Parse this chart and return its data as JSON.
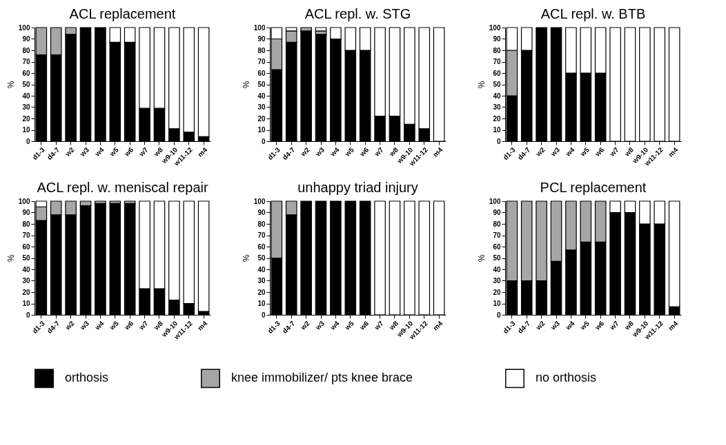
{
  "chart_data": [
    {
      "type": "bar",
      "title": "ACL replacement",
      "ylabel": "%",
      "stacked": true,
      "ylim": [
        0,
        100
      ],
      "yticks": [
        0,
        10,
        20,
        30,
        40,
        50,
        60,
        70,
        80,
        90,
        100
      ],
      "categories": [
        "d1-3",
        "d4-7",
        "w2",
        "w3",
        "w4",
        "w5",
        "w6",
        "w7",
        "w8",
        "w9-10",
        "w11-12",
        "m4"
      ],
      "series": [
        {
          "color": "#000000",
          "values": [
            76,
            76,
            94,
            100,
            100,
            87,
            87,
            29,
            29,
            11,
            8,
            4
          ]
        },
        {
          "color": "#a6a6a6",
          "values": [
            24,
            24,
            6,
            0,
            0,
            0,
            0,
            0,
            0,
            0,
            0,
            0
          ]
        },
        {
          "color": "#ffffff",
          "values": [
            0,
            0,
            0,
            0,
            0,
            13,
            13,
            71,
            71,
            89,
            92,
            96
          ]
        }
      ]
    },
    {
      "type": "bar",
      "title": "ACL repl. w. STG",
      "ylabel": "%",
      "stacked": true,
      "ylim": [
        0,
        100
      ],
      "yticks": [
        0,
        10,
        20,
        30,
        40,
        50,
        60,
        70,
        80,
        90,
        100
      ],
      "categories": [
        "d1-3",
        "d4-7",
        "w2",
        "w3",
        "w4",
        "w5",
        "w6",
        "w7",
        "w8",
        "w9-10",
        "w11-12",
        "m4"
      ],
      "series": [
        {
          "color": "#000000",
          "values": [
            63,
            87,
            97,
            94,
            90,
            80,
            80,
            22,
            22,
            15,
            11,
            0
          ]
        },
        {
          "color": "#a6a6a6",
          "values": [
            27,
            10,
            3,
            3,
            0,
            0,
            0,
            0,
            0,
            0,
            0,
            0
          ]
        },
        {
          "color": "#ffffff",
          "values": [
            10,
            3,
            0,
            3,
            10,
            20,
            20,
            78,
            78,
            85,
            89,
            100
          ]
        }
      ]
    },
    {
      "type": "bar",
      "title": "ACL repl. w. BTB",
      "ylabel": "%",
      "stacked": true,
      "ylim": [
        0,
        100
      ],
      "yticks": [
        0,
        10,
        20,
        30,
        40,
        50,
        60,
        70,
        80,
        90,
        100
      ],
      "categories": [
        "d1-3",
        "d4-7",
        "w2",
        "w3",
        "w4",
        "w5",
        "w6",
        "w7",
        "w8",
        "w9-10",
        "w11-12",
        "m4"
      ],
      "series": [
        {
          "color": "#000000",
          "values": [
            40,
            80,
            100,
            100,
            60,
            60,
            60,
            0,
            0,
            0,
            0,
            0
          ]
        },
        {
          "color": "#a6a6a6",
          "values": [
            40,
            0,
            0,
            0,
            0,
            0,
            0,
            0,
            0,
            0,
            0,
            0
          ]
        },
        {
          "color": "#ffffff",
          "values": [
            20,
            20,
            0,
            0,
            40,
            40,
            40,
            100,
            100,
            100,
            100,
            100
          ]
        }
      ]
    },
    {
      "type": "bar",
      "title": "ACL repl. w. meniscal repair",
      "ylabel": "%",
      "stacked": true,
      "ylim": [
        0,
        100
      ],
      "yticks": [
        0,
        10,
        20,
        30,
        40,
        50,
        60,
        70,
        80,
        90,
        100
      ],
      "categories": [
        "d1-3",
        "d4-7",
        "w2",
        "w3",
        "w4",
        "w5",
        "w6",
        "w7",
        "w8",
        "w9-10",
        "w11-12",
        "m4"
      ],
      "series": [
        {
          "color": "#000000",
          "values": [
            83,
            88,
            88,
            96,
            98,
            98,
            98,
            23,
            23,
            13,
            10,
            3
          ]
        },
        {
          "color": "#a6a6a6",
          "values": [
            12,
            12,
            12,
            4,
            2,
            2,
            2,
            0,
            0,
            0,
            0,
            0
          ]
        },
        {
          "color": "#ffffff",
          "values": [
            5,
            0,
            0,
            0,
            0,
            0,
            0,
            77,
            77,
            87,
            90,
            97
          ]
        }
      ]
    },
    {
      "type": "bar",
      "title": "unhappy triad injury",
      "ylabel": "%",
      "stacked": true,
      "ylim": [
        0,
        100
      ],
      "yticks": [
        0,
        10,
        20,
        30,
        40,
        50,
        60,
        70,
        80,
        90,
        100
      ],
      "categories": [
        "d1-3",
        "d4-7",
        "w2",
        "w3",
        "w4",
        "w5",
        "w6",
        "w7",
        "w8",
        "w9-10",
        "w11-12",
        "m4"
      ],
      "series": [
        {
          "color": "#000000",
          "values": [
            50,
            88,
            100,
            100,
            100,
            100,
            100,
            0,
            0,
            0,
            0,
            0
          ]
        },
        {
          "color": "#a6a6a6",
          "values": [
            50,
            12,
            0,
            0,
            0,
            0,
            0,
            0,
            0,
            0,
            0,
            0
          ]
        },
        {
          "color": "#ffffff",
          "values": [
            0,
            0,
            0,
            0,
            0,
            0,
            0,
            100,
            100,
            100,
            100,
            100
          ]
        }
      ]
    },
    {
      "type": "bar",
      "title": "PCL replacement",
      "ylabel": "%",
      "stacked": true,
      "legend": "bottom",
      "ylim": [
        0,
        100
      ],
      "yticks": [
        0,
        10,
        20,
        30,
        40,
        50,
        60,
        70,
        80,
        90,
        100
      ],
      "categories": [
        "d1-3",
        "d4-7",
        "w2",
        "w3",
        "w4",
        "w5",
        "w6",
        "w7",
        "w8",
        "w9-10",
        "w11-12",
        "m4"
      ],
      "series": [
        {
          "name": "orthosis",
          "color": "#000000",
          "values": [
            30,
            30,
            30,
            47,
            57,
            64,
            64,
            90,
            90,
            80,
            80,
            7
          ]
        },
        {
          "name": "knee immobilizer/ pts knee brace",
          "color": "#a6a6a6",
          "values": [
            70,
            70,
            70,
            53,
            43,
            36,
            36,
            0,
            0,
            0,
            0,
            0
          ]
        },
        {
          "name": "no orthosis",
          "color": "#ffffff",
          "values": [
            0,
            0,
            0,
            0,
            0,
            0,
            0,
            10,
            10,
            20,
            20,
            93
          ]
        }
      ]
    }
  ]
}
